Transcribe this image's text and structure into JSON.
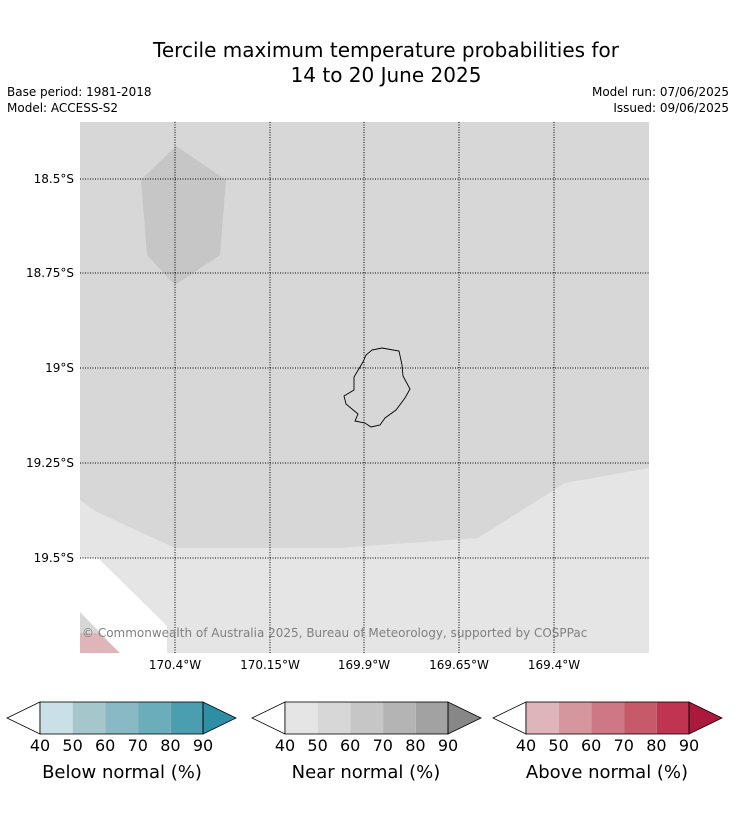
{
  "title_line1": "Tercile maximum temperature probabilities for",
  "title_line2": "14 to 20 June 2025",
  "base_period": "Base period: 1981-2018",
  "model": "Model: ACCESS-S2",
  "model_run": "Model run: 07/06/2025",
  "issued": "Issued: 09/06/2025",
  "map": {
    "lat_labels": [
      "18.5°S",
      "18.75°S",
      "19°S",
      "19.25°S",
      "19.5°S"
    ],
    "lon_labels": [
      "170.4°W",
      "170.15°W",
      "169.9°W",
      "169.65°W",
      "169.4°W"
    ],
    "copyright": "© Commonwealth of Australia 2025, Bureau of Meteorology, supported by COSPPac",
    "colors": {
      "near_50": "#d7d7d7",
      "near_60": "#c6c6c6",
      "near_40": "#e5e5e5",
      "above_40": "#e0b5ba",
      "coast": "#000000",
      "grid": "#000000"
    }
  },
  "colorbars": [
    {
      "title": "Below normal (%)",
      "ticks": [
        "40",
        "50",
        "60",
        "70",
        "80",
        "90"
      ],
      "colors": [
        "#c8e0e6",
        "#a5c7cc",
        "#88b9c4",
        "#6cadbb",
        "#4a9eb0",
        "#2e8fa4"
      ]
    },
    {
      "title": "Near normal (%)",
      "ticks": [
        "40",
        "50",
        "60",
        "70",
        "80",
        "90"
      ],
      "colors": [
        "#e5e5e5",
        "#d7d7d7",
        "#c6c6c6",
        "#b4b4b4",
        "#a2a2a2",
        "#878787"
      ]
    },
    {
      "title": "Above normal (%)",
      "ticks": [
        "40",
        "50",
        "60",
        "70",
        "80",
        "90"
      ],
      "colors": [
        "#e0b5ba",
        "#d6969e",
        "#cd7884",
        "#c65a69",
        "#bf3450",
        "#ab1a3c"
      ]
    }
  ]
}
